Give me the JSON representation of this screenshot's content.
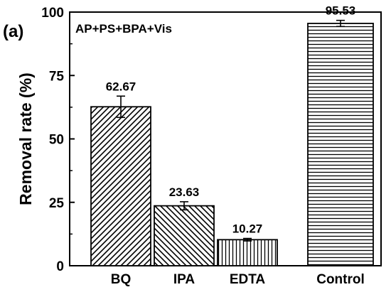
{
  "chart_data": {
    "type": "bar",
    "panel_label": "(a)",
    "annotation": "AP+PS+BPA+Vis",
    "categories": [
      "BQ",
      "IPA",
      "EDTA",
      "Control"
    ],
    "values": [
      62.67,
      23.63,
      10.27,
      95.53
    ],
    "errors": [
      4.2,
      1.6,
      0.5,
      1.2
    ],
    "data_labels": [
      "62.67",
      "23.63",
      "10.27",
      "95.53"
    ],
    "patterns": [
      "diagonal-up",
      "diagonal-down",
      "vertical",
      "horizontal"
    ],
    "xlabel": "",
    "ylabel": "Removal rate (%)",
    "ylim": [
      0,
      100
    ],
    "yticks": [
      0,
      25,
      50,
      75,
      100
    ],
    "grid": false,
    "colors": {
      "axis": "#000000",
      "bar_stroke": "#000000",
      "bar_fill": "#ffffff"
    }
  }
}
